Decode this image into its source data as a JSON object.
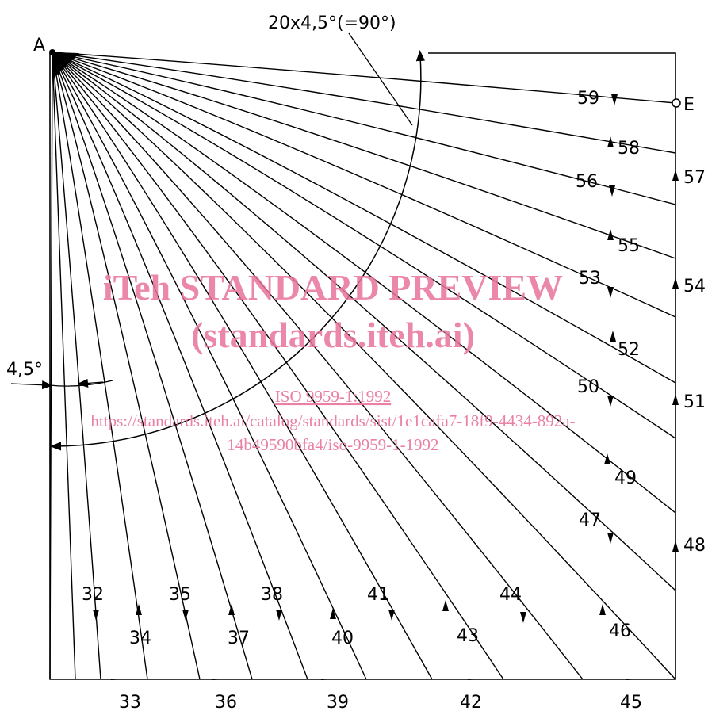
{
  "points": {
    "start": "A",
    "end": "E"
  },
  "angle_label": "20x4,5°(=90°)",
  "step_label": "4,5°",
  "ray_labels": [
    "32",
    "33",
    "34",
    "35",
    "36",
    "37",
    "38",
    "39",
    "40",
    "41",
    "42",
    "43",
    "44",
    "45",
    "46",
    "47",
    "48",
    "49",
    "50",
    "51",
    "52",
    "53",
    "54",
    "55",
    "56",
    "57",
    "58",
    "59"
  ],
  "watermark": {
    "line1": "iTeh STANDARD PREVIEW",
    "line2": "(standards.iteh.ai)",
    "line3": "ISO 9959-1:1992",
    "line4": "https://standards.iteh.ai/catalog/standards/sist/1e1cafa7-18f9-4434-892a-",
    "line5": "14b49590bfa4/iso-9959-1-1992"
  },
  "colors": {
    "ink": "#000000",
    "watermark": "#e8739c"
  }
}
